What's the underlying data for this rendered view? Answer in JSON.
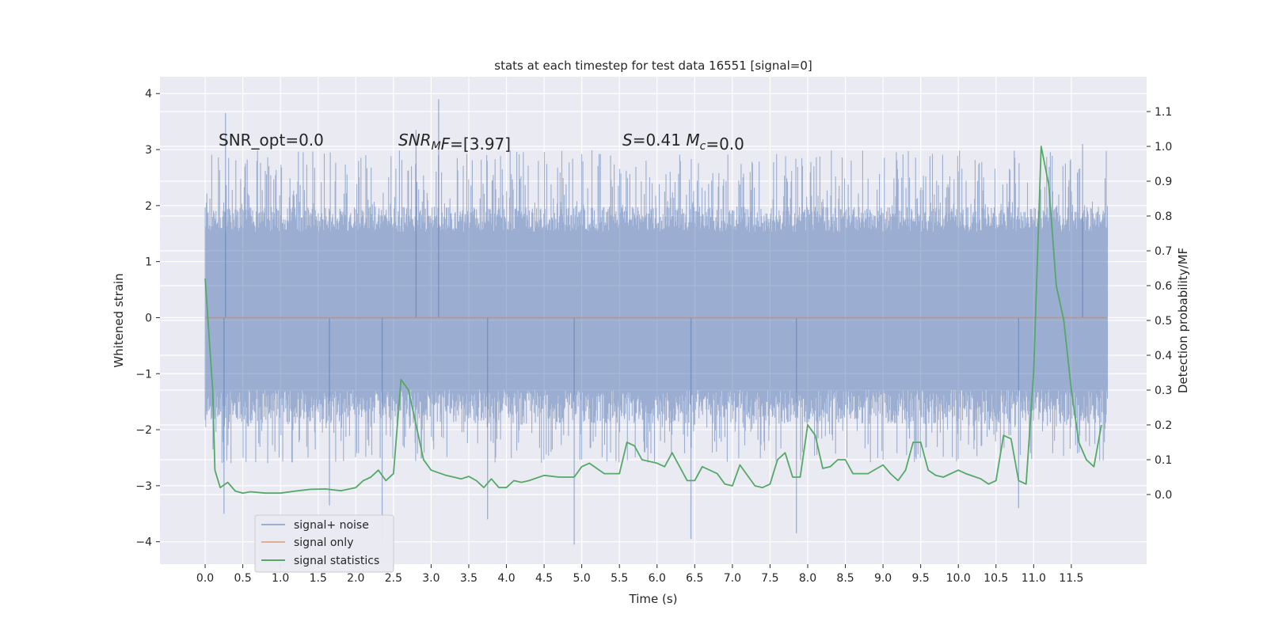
{
  "chart_data": {
    "type": "line",
    "title": "stats at each timestep for test data 16551 [signal=0]",
    "xlabel": "Time (s)",
    "ylabel": "Whitened strain",
    "y2label": "Detection probability/MF",
    "xlim": [
      -0.6,
      12.5
    ],
    "ylim": [
      -4.4,
      4.3
    ],
    "y2lim": [
      -0.2,
      1.2
    ],
    "x_ticks": [
      0.0,
      0.5,
      1.0,
      1.5,
      2.0,
      2.5,
      3.0,
      3.5,
      4.0,
      4.5,
      5.0,
      5.5,
      6.0,
      6.5,
      7.0,
      7.5,
      8.0,
      8.5,
      9.0,
      9.5,
      10.0,
      10.5,
      11.0,
      11.5
    ],
    "x_tick_labels": [
      "0.0",
      "0.5",
      "1.0",
      "1.5",
      "2.0",
      "2.5",
      "3.0",
      "3.5",
      "4.0",
      "4.5",
      "5.0",
      "5.5",
      "6.0",
      "6.5",
      "7.0",
      "7.5",
      "8.0",
      "8.5",
      "9.0",
      "9.5",
      "10.0",
      "10.5",
      "11.0",
      "11.5"
    ],
    "y_ticks": [
      -4,
      -3,
      -2,
      -1,
      0,
      1,
      2,
      3,
      4
    ],
    "y_tick_labels": [
      "−4",
      "−3",
      "−2",
      "−1",
      "0",
      "1",
      "2",
      "3",
      "4"
    ],
    "y2_ticks": [
      0.0,
      0.1,
      0.2,
      0.3,
      0.4,
      0.5,
      0.6,
      0.7,
      0.8,
      0.9,
      1.0,
      1.1
    ],
    "y2_tick_labels": [
      "0.0",
      "0.1",
      "0.2",
      "0.3",
      "0.4",
      "0.5",
      "0.6",
      "0.7",
      "0.8",
      "0.9",
      "1.0",
      "1.1"
    ],
    "grid": true,
    "legend_position": "lower-left",
    "annotations": [
      {
        "parts": [
          {
            "t": "SNR_opt=0.0",
            "s": ""
          }
        ]
      },
      {
        "parts": [
          {
            "t": "SNR",
            "s": "i"
          },
          {
            "t": "M",
            "s": "sub"
          },
          {
            "t": "F",
            "s": "i"
          },
          {
            "t": "=[3.97]",
            "s": ""
          }
        ]
      },
      {
        "parts": [
          {
            "t": "S",
            "s": "i"
          },
          {
            "t": "=0.41   ",
            "s": ""
          },
          {
            "t": "M",
            "s": "i"
          },
          {
            "t": "c",
            "s": "sub"
          },
          {
            "t": "=0.0",
            "s": ""
          }
        ]
      }
    ],
    "noise": {
      "x_start": 0.0,
      "x_end": 11.98,
      "typical_range": [
        -1.35,
        1.8
      ],
      "extremes": [
        {
          "x": 0.27,
          "y": 3.65
        },
        {
          "x": 0.25,
          "y": -3.5
        },
        {
          "x": 2.8,
          "y": 3.35
        },
        {
          "x": 3.1,
          "y": 3.9
        },
        {
          "x": 4.9,
          "y": -4.05
        },
        {
          "x": 6.45,
          "y": -3.95
        },
        {
          "x": 7.85,
          "y": -3.85
        },
        {
          "x": 2.35,
          "y": -4.0
        },
        {
          "x": 11.65,
          "y": 3.1
        },
        {
          "x": 1.65,
          "y": -3.35
        },
        {
          "x": 10.8,
          "y": -3.4
        },
        {
          "x": 3.75,
          "y": -3.6
        }
      ]
    },
    "series": [
      {
        "name": "signal+ noise",
        "color": "#4c72b0",
        "opacity": 0.5
      },
      {
        "name": "signal only",
        "color": "#dd8452",
        "opacity": 0.5,
        "x": [
          0.0,
          11.98
        ],
        "y": [
          0.0,
          0.0
        ]
      },
      {
        "name": "signal statistics",
        "color": "#55a868",
        "axis": "right",
        "x": [
          0.0,
          0.1,
          0.13,
          0.2,
          0.3,
          0.4,
          0.5,
          0.6,
          0.8,
          1.0,
          1.2,
          1.4,
          1.6,
          1.8,
          2.0,
          2.1,
          2.2,
          2.3,
          2.4,
          2.5,
          2.6,
          2.7,
          2.8,
          2.9,
          3.0,
          3.2,
          3.4,
          3.5,
          3.6,
          3.7,
          3.8,
          3.9,
          4.0,
          4.1,
          4.2,
          4.3,
          4.5,
          4.7,
          4.9,
          5.0,
          5.1,
          5.2,
          5.3,
          5.5,
          5.6,
          5.7,
          5.8,
          6.0,
          6.1,
          6.2,
          6.4,
          6.5,
          6.6,
          6.8,
          6.9,
          7.0,
          7.1,
          7.3,
          7.4,
          7.5,
          7.6,
          7.7,
          7.8,
          7.9,
          8.0,
          8.1,
          8.2,
          8.3,
          8.4,
          8.5,
          8.6,
          8.8,
          9.0,
          9.1,
          9.2,
          9.3,
          9.4,
          9.5,
          9.6,
          9.7,
          9.8,
          10.0,
          10.1,
          10.3,
          10.4,
          10.5,
          10.6,
          10.7,
          10.8,
          10.9,
          11.0,
          11.1,
          11.2,
          11.3,
          11.4,
          11.5,
          11.6,
          11.7,
          11.8,
          11.9
        ],
        "y": [
          0.62,
          0.3,
          0.07,
          0.02,
          0.035,
          0.01,
          0.004,
          0.008,
          0.004,
          0.004,
          0.01,
          0.015,
          0.016,
          0.011,
          0.02,
          0.04,
          0.05,
          0.07,
          0.04,
          0.06,
          0.33,
          0.3,
          0.2,
          0.1,
          0.07,
          0.055,
          0.045,
          0.052,
          0.04,
          0.02,
          0.045,
          0.02,
          0.02,
          0.04,
          0.035,
          0.04,
          0.055,
          0.05,
          0.05,
          0.08,
          0.09,
          0.075,
          0.06,
          0.06,
          0.15,
          0.14,
          0.1,
          0.09,
          0.08,
          0.12,
          0.04,
          0.04,
          0.08,
          0.06,
          0.03,
          0.025,
          0.085,
          0.025,
          0.02,
          0.03,
          0.1,
          0.12,
          0.05,
          0.05,
          0.2,
          0.17,
          0.075,
          0.08,
          0.1,
          0.1,
          0.06,
          0.06,
          0.085,
          0.06,
          0.04,
          0.07,
          0.15,
          0.15,
          0.07,
          0.055,
          0.05,
          0.07,
          0.06,
          0.045,
          0.03,
          0.04,
          0.17,
          0.16,
          0.04,
          0.03,
          0.35,
          1.0,
          0.89,
          0.6,
          0.5,
          0.3,
          0.15,
          0.1,
          0.08,
          0.2
        ]
      }
    ]
  }
}
